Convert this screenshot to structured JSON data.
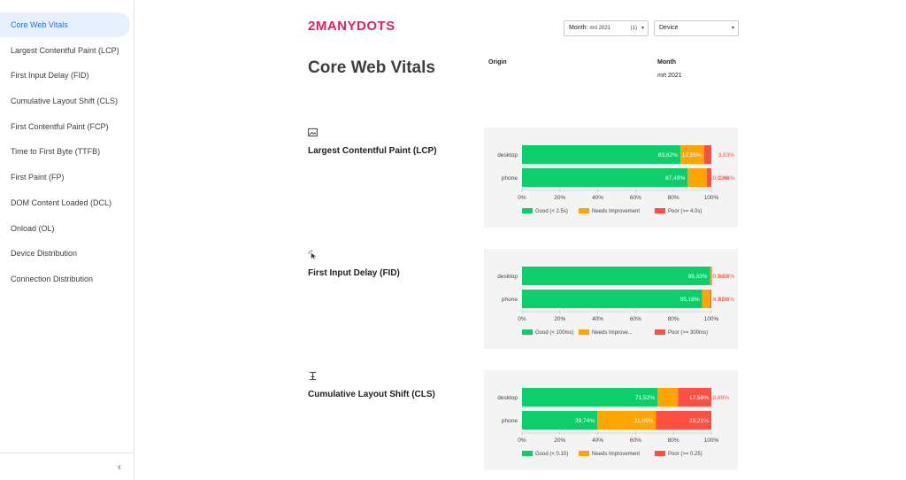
{
  "sidebar": {
    "items": [
      {
        "label": "Core Web Vitals",
        "active": true
      },
      {
        "label": "Largest Contentful Paint (LCP)",
        "active": false
      },
      {
        "label": "First Input Delay (FID)",
        "active": false
      },
      {
        "label": "Cumulative Layout Shift (CLS)",
        "active": false
      },
      {
        "label": "First Contentful Paint (FCP)",
        "active": false
      },
      {
        "label": "Time to First Byte (TTFB)",
        "active": false
      },
      {
        "label": "First Paint (FP)",
        "active": false
      },
      {
        "label": "DOM Content Loaded (DCL)",
        "active": false
      },
      {
        "label": "Onload (OL)",
        "active": false
      },
      {
        "label": "Device Distribution",
        "active": false
      },
      {
        "label": "Connection Distribution",
        "active": false
      }
    ],
    "collapse_glyph": "‹"
  },
  "header": {
    "logo": "2MANYDOTS",
    "month_select": {
      "label": "Month:",
      "value": "mrt 2021",
      "count": "(1)"
    },
    "device_select": {
      "label": "Device"
    },
    "arrow_glyph": "▾"
  },
  "page": {
    "title": "Core Web Vitals",
    "origin_label": "Origin",
    "month_label": "Month",
    "month_value": "mrt 2021"
  },
  "colors": {
    "good": "#0cce6b",
    "needs": "#ffa400",
    "poor": "#ff4e42",
    "poor_text": "#ff4e42"
  },
  "chart_data": [
    {
      "type": "bar",
      "orientation": "horizontal",
      "stacked": true,
      "title": "Largest Contentful Paint (LCP)",
      "icon": "image-icon",
      "categories": [
        "desktop",
        "phone"
      ],
      "series": [
        {
          "name": "Good (< 2.5s)",
          "values": [
            83.62,
            87.49
          ],
          "labels": [
            "83,62%",
            "87,49%"
          ]
        },
        {
          "name": "Needs Improvement",
          "values": [
            12.55,
            10.03
          ],
          "labels": [
            "12,55%",
            "10,03%"
          ]
        },
        {
          "name": "Poor (>= 4.0s)",
          "values": [
            3.83,
            2.48
          ],
          "labels": [
            "3,83%",
            "2,48%"
          ]
        }
      ],
      "xticks": [
        "0%",
        "20%",
        "40%",
        "60%",
        "80%",
        "100%"
      ],
      "xlim": [
        0,
        100
      ],
      "legend": "bottom"
    },
    {
      "type": "bar",
      "orientation": "horizontal",
      "stacked": true,
      "title": "First Input Delay (FID)",
      "icon": "cursor-click-icon",
      "categories": [
        "desktop",
        "phone"
      ],
      "series": [
        {
          "name": "Good (< 100ms)",
          "values": [
            99.33,
            95.16
          ],
          "labels": [
            "99,33%",
            "95,16%"
          ]
        },
        {
          "name": "Needs Improve...",
          "values": [
            0.54,
            4.31
          ],
          "labels": [
            "0,54%",
            "4,31%"
          ]
        },
        {
          "name": "Poor (>= 300ms)",
          "values": [
            0.13,
            0.53
          ],
          "labels": [
            "0,13%",
            "0,53%"
          ]
        }
      ],
      "xticks": [
        "0%",
        "20%",
        "40%",
        "60%",
        "80%",
        "100%"
      ],
      "xlim": [
        0,
        100
      ],
      "legend": "bottom"
    },
    {
      "type": "bar",
      "orientation": "horizontal",
      "stacked": true,
      "title": "Cumulative Layout Shift (CLS)",
      "icon": "text-cursor-icon",
      "categories": [
        "desktop",
        "phone"
      ],
      "series": [
        {
          "name": "Good (< 0.10)",
          "values": [
            71.52,
            39.74
          ],
          "labels": [
            "71,52%",
            "39,74%"
          ]
        },
        {
          "name": "Needs Improvement",
          "values": [
            10.89,
            31.05
          ],
          "labels": [
            "10,89%",
            "31,05%"
          ]
        },
        {
          "name": "Poor (>= 0.25)",
          "values": [
            17.59,
            29.21
          ],
          "labels": [
            "17,59%",
            "29,21%"
          ]
        }
      ],
      "xticks": [
        "0%",
        "20%",
        "40%",
        "60%",
        "80%",
        "100%"
      ],
      "xlim": [
        0,
        100
      ],
      "legend": "bottom"
    }
  ]
}
